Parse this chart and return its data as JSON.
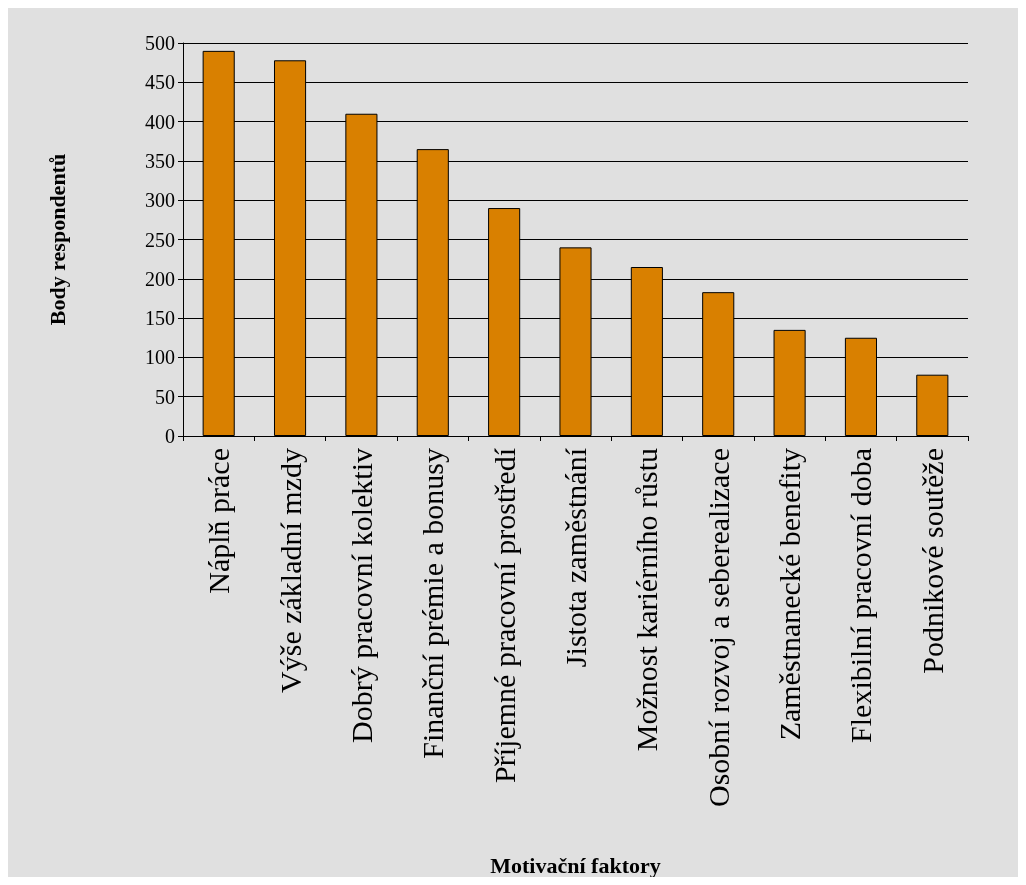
{
  "chart_data": {
    "type": "bar",
    "xlabel": "Motivační faktory",
    "ylabel": "Body respondentů",
    "categories": [
      "Náplň práce",
      "Výše základní mzdy",
      "Dobrý pracovní kolektiv",
      "Finanční prémie a bonusy",
      "Příjemné pracovní prostředí",
      "Jistota zaměstnání",
      "Možnost kariérního růstu",
      "Osobní rozvoj a seberealizace",
      "Zaměstnanecké benefity",
      "Flexibilní pracovní doba",
      "Podnikové soutěže"
    ],
    "values": [
      490,
      478,
      410,
      365,
      290,
      240,
      215,
      183,
      135,
      125,
      78
    ],
    "color": "#d98000",
    "ylim": [
      0,
      500
    ],
    "yticks": [
      0,
      50,
      100,
      150,
      200,
      250,
      300,
      350,
      400,
      450,
      500
    ],
    "grid": "y"
  }
}
